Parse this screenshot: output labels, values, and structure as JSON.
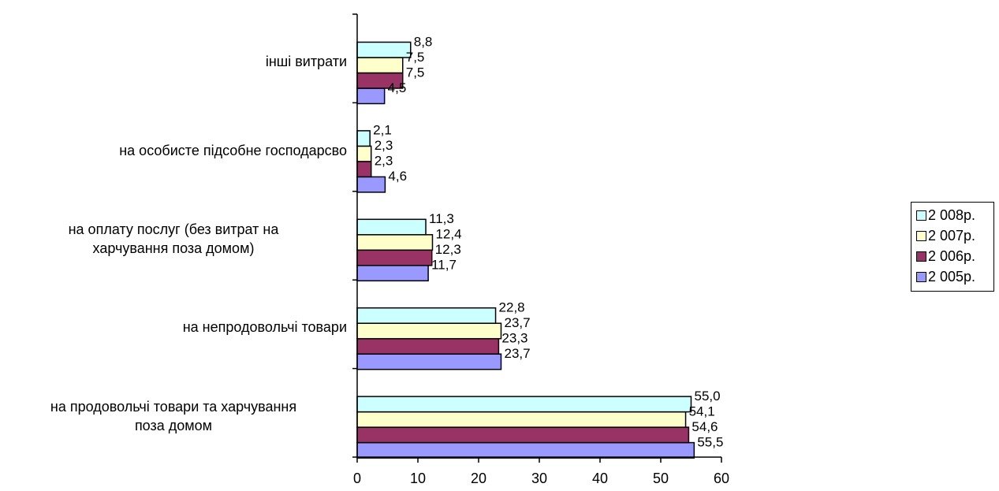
{
  "chart_data": {
    "type": "bar",
    "orientation": "horizontal",
    "categories": [
      "на продовольчі товари та харчування поза домом",
      "на непродовольчі товари",
      "на оплату послуг (без витрат на харчування поза домом)",
      "на особисте підсобне господарсво",
      "інші витрати"
    ],
    "category_lines": [
      [
        "на продовольчі товари та харчування",
        "поза домом"
      ],
      [
        "на непродовольчі товари"
      ],
      [
        "на оплату послуг (без витрат на",
        "харчування поза домом)"
      ],
      [
        "на особисте підсобне господарсво"
      ],
      [
        "інші витрати"
      ]
    ],
    "series": [
      {
        "name": "2 005р.",
        "color": "#9999ff",
        "values": [
          55.5,
          23.7,
          11.7,
          4.6,
          4.5
        ],
        "labels": [
          "55,5",
          "23,7",
          "11,7",
          "4,6",
          "4,5"
        ]
      },
      {
        "name": "2 006р.",
        "color": "#993366",
        "values": [
          54.6,
          23.3,
          12.3,
          2.3,
          7.5
        ],
        "labels": [
          "54,6",
          "23,3",
          "12,3",
          "2,3",
          "7,5"
        ]
      },
      {
        "name": "2 007р.",
        "color": "#ffffcc",
        "values": [
          54.1,
          23.7,
          12.4,
          2.3,
          7.5
        ],
        "labels": [
          "54,1",
          "23,7",
          "12,4",
          "2,3",
          "7,5"
        ]
      },
      {
        "name": "2 008р.",
        "color": "#ccffff",
        "values": [
          55.0,
          22.8,
          11.3,
          2.1,
          8.8
        ],
        "labels": [
          "55,0",
          "22,8",
          "11,3",
          "2,1",
          "8,8"
        ]
      }
    ],
    "xlim": [
      0,
      60
    ],
    "xticks": [
      "0",
      "10",
      "20",
      "30",
      "40",
      "50",
      "60"
    ],
    "grid": false,
    "legend_position": "right"
  }
}
